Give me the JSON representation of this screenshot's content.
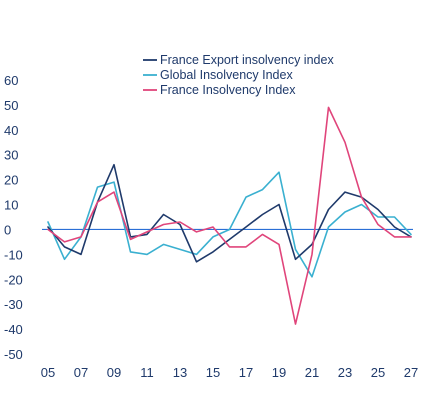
{
  "chart_data": {
    "type": "line",
    "title": "",
    "xlabel": "",
    "ylabel": "",
    "ylim": [
      -50,
      60
    ],
    "yticks": [
      60,
      50,
      40,
      30,
      20,
      10,
      0,
      -10,
      -20,
      -30,
      -40,
      -50
    ],
    "xlim": [
      2005,
      2027
    ],
    "xtick_labels": [
      "05",
      "07",
      "09",
      "11",
      "13",
      "15",
      "17",
      "19",
      "21",
      "23",
      "25",
      "27"
    ],
    "xtick_years": [
      2005,
      2007,
      2009,
      2011,
      2013,
      2015,
      2017,
      2019,
      2021,
      2023,
      2025,
      2027
    ],
    "x": [
      2005,
      2006,
      2007,
      2008,
      2009,
      2010,
      2011,
      2012,
      2013,
      2014,
      2015,
      2016,
      2017,
      2018,
      2019,
      2020,
      2021,
      2022,
      2023,
      2024,
      2025,
      2026,
      2027
    ],
    "grid": false,
    "zero_line": true,
    "legend_position": "top-center",
    "series": [
      {
        "name": "France Export insolvency index",
        "color": "#1f3a6b",
        "values": [
          1,
          -7,
          -10,
          11,
          26,
          -3,
          -2,
          6,
          2,
          -13,
          -9,
          -4,
          1,
          6,
          10,
          -12,
          -6,
          8,
          15,
          13,
          8,
          1,
          -3
        ]
      },
      {
        "name": "Global Insolvency Index",
        "color": "#3ab0d0",
        "values": [
          3,
          -12,
          -3,
          17,
          19,
          -9,
          -10,
          -6,
          -8,
          -10,
          -3,
          0,
          13,
          16,
          23,
          -8,
          -19,
          1,
          7,
          10,
          5,
          5,
          -2
        ]
      },
      {
        "name": "France Insolvency Index",
        "color": "#e0457b",
        "values": [
          0,
          -5,
          -3,
          11,
          15,
          -4,
          -1,
          2,
          3,
          -1,
          1,
          -7,
          -7,
          -2,
          -6,
          -38,
          -10,
          49,
          35,
          13,
          2,
          -3,
          -3
        ]
      }
    ]
  }
}
